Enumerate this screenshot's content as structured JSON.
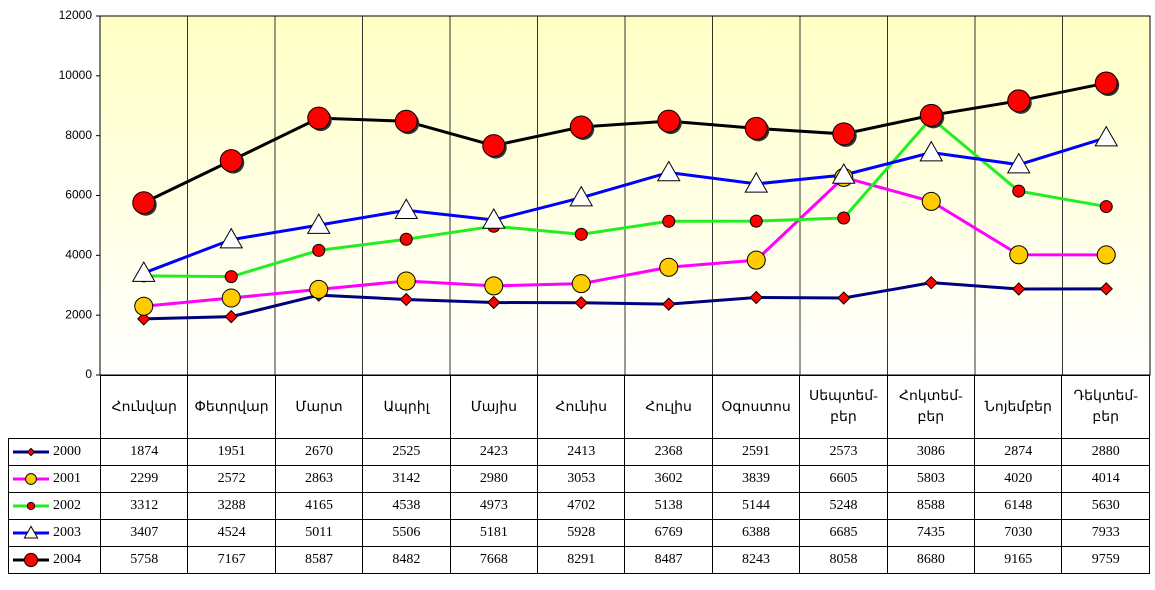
{
  "chart_data": {
    "type": "line",
    "categories": [
      "Հունվար",
      "Փետրվար",
      "Մարտ",
      "Ապրիլ",
      "Մայիս",
      "Հունիս",
      "Հուլիս",
      "Օգոստոս",
      "Սեպտեմ-\nբեր",
      "Հոկտեմ-\nբեր",
      "Նոյեմբեր",
      "Դեկտեմ-\nբեր"
    ],
    "series": [
      {
        "name": "2000",
        "color": "#000080",
        "marker": "diamond",
        "marker_color": "#ff0000",
        "values": [
          1874,
          1951,
          2670,
          2525,
          2423,
          2413,
          2368,
          2591,
          2573,
          3086,
          2874,
          2880
        ]
      },
      {
        "name": "2001",
        "color": "#ff00ff",
        "marker": "circle",
        "marker_color": "#ffcc00",
        "values": [
          2299,
          2572,
          2863,
          3142,
          2980,
          3053,
          3602,
          3839,
          6605,
          5803,
          4020,
          4014
        ]
      },
      {
        "name": "2002",
        "color": "#22ee22",
        "marker": "circle",
        "marker_color": "#ff0000",
        "values": [
          3312,
          3288,
          4165,
          4538,
          4973,
          4702,
          5138,
          5144,
          5248,
          8588,
          6148,
          5630
        ]
      },
      {
        "name": "2003",
        "color": "#0000ff",
        "marker": "triangle",
        "marker_color": "#ffffff",
        "values": [
          3407,
          4524,
          5011,
          5506,
          5181,
          5928,
          6769,
          6388,
          6685,
          7435,
          7030,
          7933
        ]
      },
      {
        "name": "2004",
        "color": "#000000",
        "marker": "circle",
        "marker_color": "#ff0000",
        "values": [
          5758,
          7167,
          8587,
          8482,
          7668,
          8291,
          8487,
          8243,
          8058,
          8680,
          9165,
          9759
        ]
      }
    ],
    "ylim": [
      0,
      12000
    ],
    "yticks": [
      0,
      2000,
      4000,
      6000,
      8000,
      10000,
      12000
    ],
    "data_table": true
  }
}
